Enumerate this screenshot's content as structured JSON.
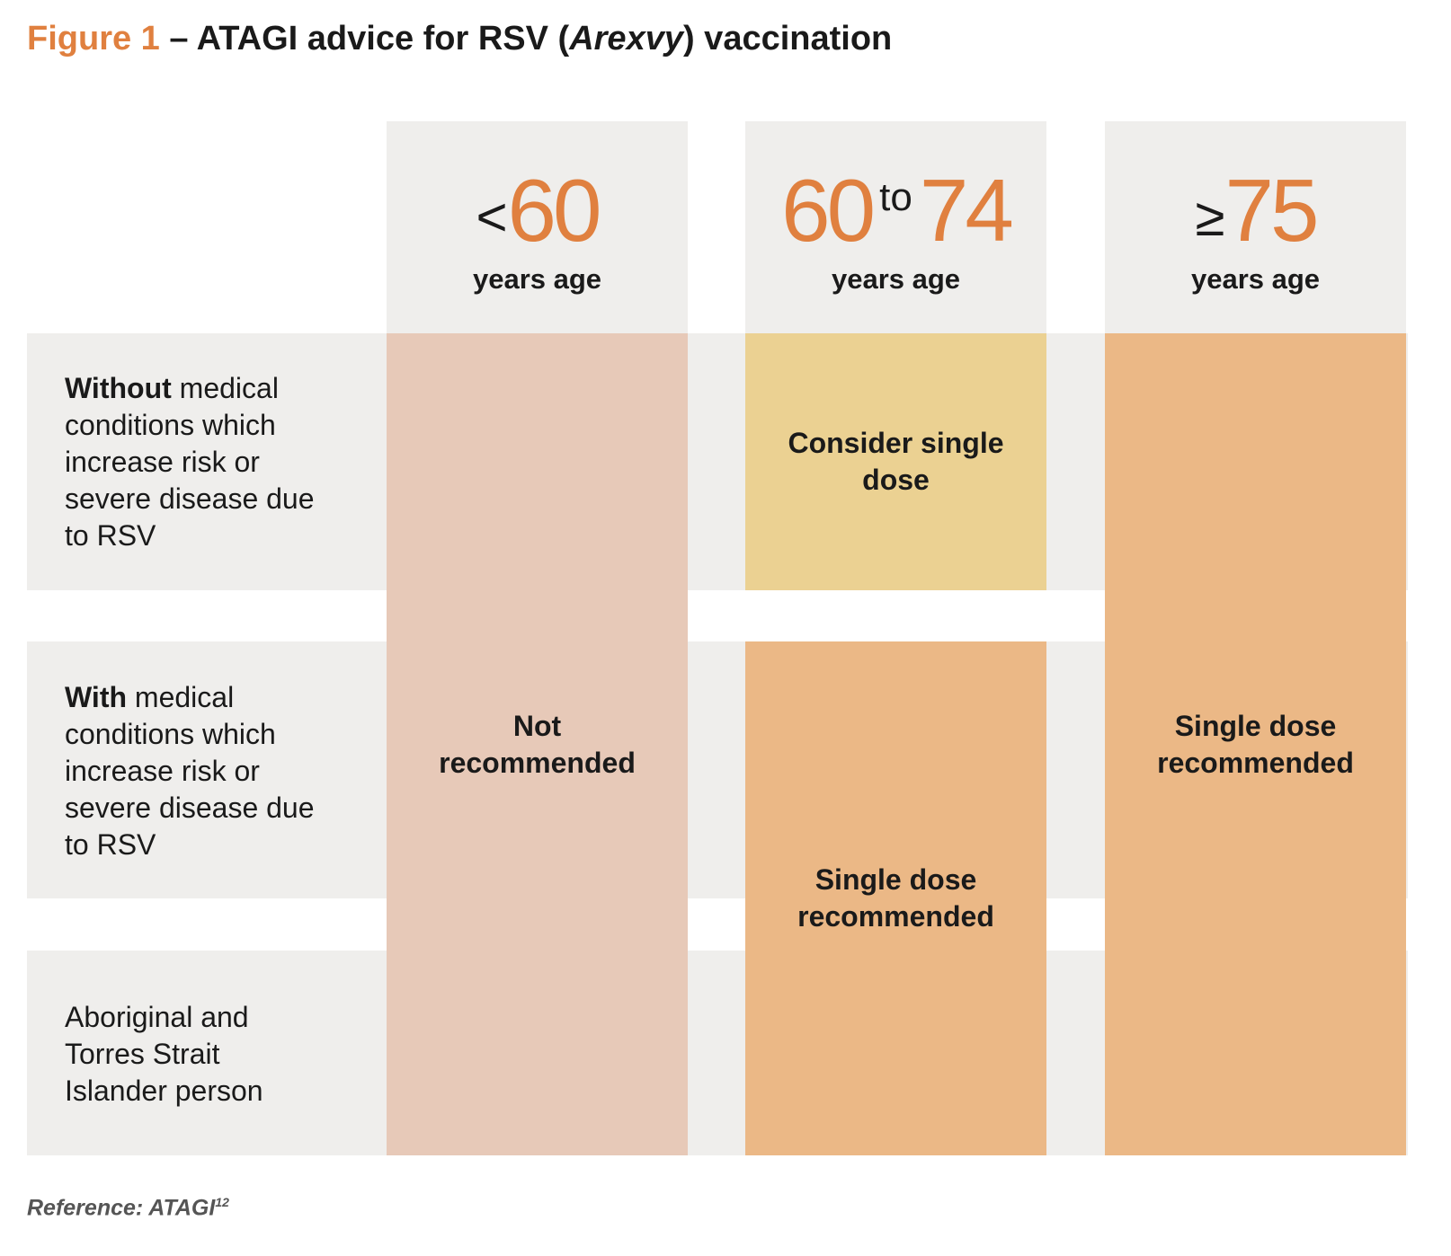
{
  "title": {
    "figure_label": "Figure 1",
    "prefix": " – ATAGI advice for RSV (",
    "product": "Arexvy",
    "suffix": ") vaccination"
  },
  "columns": [
    {
      "symbol": "<",
      "age": "60",
      "sub": "years age"
    },
    {
      "age_from": "60",
      "connector": "to",
      "age_to": "74",
      "sub": "years age"
    },
    {
      "symbol": "≥",
      "age": "75",
      "sub": "years age"
    }
  ],
  "rows": [
    {
      "bold": "Without",
      "rest": " medical conditions which increase risk or severe disease due to RSV"
    },
    {
      "bold": "With",
      "rest": " medical conditions which increase risk or severe disease due to RSV"
    },
    {
      "bold": "",
      "rest": "Aboriginal and Torres Strait Islander person"
    }
  ],
  "cells": {
    "under60": "Not recommended",
    "age60_74_without": "Consider single dose",
    "age60_74_with": "Single dose recommended",
    "age75_plus": "Single dose recommended"
  },
  "reference": {
    "text": "Reference: ATAGI",
    "sup": "12"
  },
  "colors": {
    "accent": "#E0803F",
    "row_bg": "#efeeec",
    "not_recommended": "#e7c9b8",
    "consider": "#ebd192",
    "recommended": "#ebb886"
  }
}
